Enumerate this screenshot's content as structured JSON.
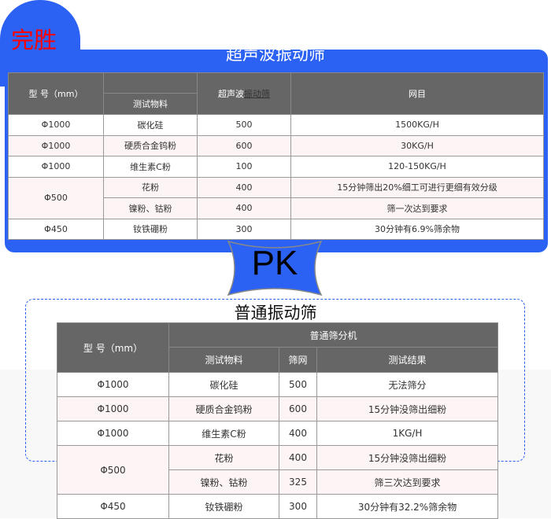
{
  "badge": "完胜",
  "ultrasonic": {
    "title": "超声波振动筛",
    "headers": {
      "model": "型 号（mm）",
      "material": "测试物料",
      "sieve_a": "超声波",
      "sieve_b": "振动筛",
      "mesh": "网目"
    },
    "rows": [
      {
        "model": "Φ1000",
        "material": "碳化硅",
        "mesh": "500",
        "result": "1500KG/H"
      },
      {
        "model": "Φ1000",
        "material": "硬质合金钨粉",
        "mesh": "600",
        "result": "30KG/H"
      },
      {
        "model": "Φ1000",
        "material": "维生素C粉",
        "mesh": "100",
        "result": "120-150KG/H"
      },
      {
        "model": "Φ500",
        "material": "花粉",
        "mesh": "400",
        "result": "15分钟筛出20%细工可进行更细有效分级"
      },
      {
        "material": "镍粉、钴粉",
        "mesh": "400",
        "result": "筛一次达到要求"
      },
      {
        "model": "Φ450",
        "material": "钕铁硼粉",
        "mesh": "300",
        "result": "30分钟有6.9%筛余物"
      }
    ]
  },
  "pk": "PK",
  "ordinary": {
    "title": "普通振动筛",
    "headers": {
      "model": "型 号（mm）",
      "group": "普通筛分机",
      "material": "测试物料",
      "mesh": "筛网",
      "result": "测试结果"
    },
    "rows": [
      {
        "model": "Φ1000",
        "material": "碳化硅",
        "mesh": "500",
        "result": "无法筛分"
      },
      {
        "model": "Φ1000",
        "material": "硬质合金钨粉",
        "mesh": "600",
        "result": "15分钟没筛出细粉"
      },
      {
        "model": "Φ1000",
        "material": "维生素C粉",
        "mesh": "400",
        "result": "1KG/H"
      },
      {
        "model": "Φ500",
        "material": "花粉",
        "mesh": "400",
        "result": "15分钟没筛出细粉"
      },
      {
        "material": "镍粉、钴粉",
        "mesh": "325",
        "result": "筛三次达到要求"
      },
      {
        "model": "Φ450",
        "material": "钕铁硼粉",
        "mesh": "300",
        "result": "30分钟有32.2%筛余物"
      }
    ]
  },
  "colors": {
    "brand_blue": "#2c62f4",
    "badge_red": "#ff0000",
    "header_gray": "#666666"
  }
}
